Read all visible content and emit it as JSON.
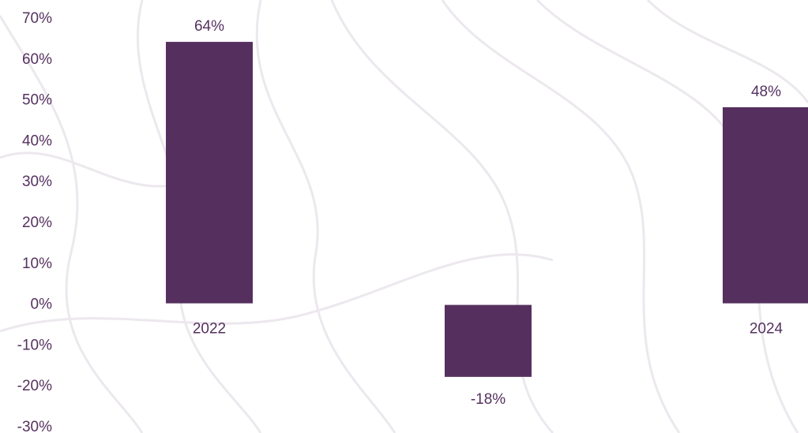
{
  "chart_data": {
    "type": "bar",
    "categories": [
      "2022",
      "",
      "2024"
    ],
    "values": [
      64,
      -18,
      48
    ],
    "value_labels": [
      "64%",
      "-18%",
      "48%"
    ],
    "y_tick_labels": [
      "70%",
      "60%",
      "50%",
      "40%",
      "30%",
      "20%",
      "10%",
      "0%",
      "-10%",
      "-20%",
      "-30%"
    ],
    "ylim": [
      -30,
      70
    ],
    "y_tick_step": 10,
    "title": "",
    "xlabel": "",
    "ylabel": "",
    "grid": false,
    "bar_color": "#55305f",
    "label_color": "#55315f",
    "background_pattern_color": "#ece8ee"
  }
}
